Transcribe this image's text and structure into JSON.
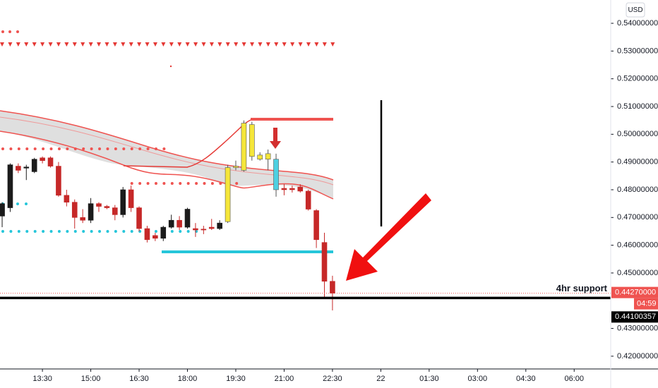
{
  "chart_data": {
    "type": "candlestick",
    "currency": "USD",
    "ylim": [
      0.4154,
      0.5484
    ],
    "yticks": [
      {
        "value": 0.54,
        "label": "0.54000000"
      },
      {
        "value": 0.53,
        "label": "0.53000000"
      },
      {
        "value": 0.52,
        "label": "0.52000000"
      },
      {
        "value": 0.51,
        "label": "0.51000000"
      },
      {
        "value": 0.5,
        "label": "0.50000000"
      },
      {
        "value": 0.49,
        "label": "0.49000000"
      },
      {
        "value": 0.48,
        "label": "0.48000000"
      },
      {
        "value": 0.47,
        "label": "0.47000000"
      },
      {
        "value": 0.46,
        "label": "0.46000000"
      },
      {
        "value": 0.45,
        "label": "0.45000000"
      },
      {
        "value": 0.43,
        "label": "0.43000000"
      },
      {
        "value": 0.42,
        "label": "0.42000000"
      }
    ],
    "xlim": [
      "12:11",
      "07:08"
    ],
    "xticks": [
      "13:30",
      "15:00",
      "16:30",
      "18:00",
      "19:30",
      "21:00",
      "22:30",
      "22",
      "01:30",
      "03:00",
      "04:30",
      "06:00"
    ],
    "x": [
      "12:15",
      "12:30",
      "12:45",
      "13:00",
      "13:15",
      "13:30",
      "13:45",
      "14:00",
      "14:15",
      "14:30",
      "14:45",
      "15:00",
      "15:15",
      "15:30",
      "15:45",
      "16:00",
      "16:15",
      "16:30",
      "16:45",
      "17:00",
      "17:15",
      "17:30",
      "17:45",
      "18:00",
      "18:15",
      "18:30",
      "18:45",
      "19:00",
      "19:15",
      "19:30",
      "19:45",
      "20:00",
      "20:15",
      "20:30",
      "20:45",
      "21:00",
      "21:15",
      "21:30",
      "21:45",
      "22:00",
      "22:15",
      "22:30"
    ],
    "open": [
      0.4705,
      0.4735,
      0.4885,
      0.4878,
      0.4865,
      0.4915,
      0.4915,
      0.4885,
      0.478,
      0.4755,
      0.47,
      0.469,
      0.475,
      0.474,
      0.4735,
      0.471,
      0.48,
      0.4735,
      0.466,
      0.4635,
      0.4625,
      0.4665,
      0.469,
      0.4665,
      0.466,
      0.4658,
      0.4665,
      0.466,
      0.4685,
      0.4885,
      0.487,
      0.5035,
      0.4925,
      0.493,
      0.491,
      0.4805,
      0.4805,
      0.481,
      0.4795,
      0.4725,
      0.461,
      0.447
    ],
    "high": [
      0.4755,
      0.4895,
      0.4895,
      0.489,
      0.4915,
      0.492,
      0.492,
      0.49,
      0.48,
      0.4765,
      0.473,
      0.477,
      0.4755,
      0.4745,
      0.4745,
      0.481,
      0.4815,
      0.474,
      0.467,
      0.4645,
      0.467,
      0.471,
      0.4705,
      0.4735,
      0.468,
      0.467,
      0.4695,
      0.469,
      0.489,
      0.4905,
      0.505,
      0.5045,
      0.4935,
      0.4945,
      0.493,
      0.482,
      0.4815,
      0.482,
      0.48,
      0.473,
      0.4645,
      0.449
    ],
    "low": [
      0.4665,
      0.472,
      0.486,
      0.4835,
      0.486,
      0.4895,
      0.488,
      0.4775,
      0.474,
      0.466,
      0.468,
      0.468,
      0.472,
      0.473,
      0.469,
      0.47,
      0.472,
      0.465,
      0.461,
      0.4615,
      0.4615,
      0.466,
      0.4655,
      0.466,
      0.463,
      0.464,
      0.4655,
      0.4655,
      0.468,
      0.487,
      0.4865,
      0.4905,
      0.4905,
      0.487,
      0.4775,
      0.478,
      0.479,
      0.479,
      0.4725,
      0.459,
      0.441,
      0.4365
    ],
    "close": [
      0.475,
      0.489,
      0.487,
      0.4882,
      0.491,
      0.4905,
      0.4885,
      0.478,
      0.4755,
      0.47,
      0.469,
      0.475,
      0.474,
      0.4735,
      0.471,
      0.48,
      0.4735,
      0.466,
      0.462,
      0.4625,
      0.4665,
      0.469,
      0.4665,
      0.473,
      0.4655,
      0.4655,
      0.466,
      0.468,
      0.488,
      0.488,
      0.504,
      0.492,
      0.491,
      0.491,
      0.48,
      0.48,
      0.48,
      0.4795,
      0.473,
      0.462,
      0.447,
      0.4427
    ],
    "colors": [
      "#1b1b1b",
      "#1b1b1b",
      "#c62828",
      "#1b1b1b",
      "#1b1b1b",
      "#c62828",
      "#c62828",
      "#c62828",
      "#c62828",
      "#c62828",
      "#c62828",
      "#1b1b1b",
      "#c62828",
      "#c62828",
      "#c62828",
      "#1b1b1b",
      "#c62828",
      "#c62828",
      "#c62828",
      "#c62828",
      "#1b1b1b",
      "#1b1b1b",
      "#c62828",
      "#1b1b1b",
      "#c62828",
      "#c62828",
      "#c62828",
      "#1b1b1b",
      "#f5e63a",
      "#f5e63a",
      "#f5e63a",
      "#f5e63a",
      "#f5e63a",
      "#f5e63a",
      "#4dd0e1",
      "#c62828",
      "#c62828",
      "#c62828",
      "#c62828",
      "#c62828",
      "#c62828",
      "#c62828"
    ],
    "last_price": {
      "value": 0.4427,
      "label": "0.44270000"
    },
    "countdown": "04:59",
    "support": {
      "value": 0.44100357,
      "label": "0.44100357",
      "text": "4hr support"
    }
  }
}
